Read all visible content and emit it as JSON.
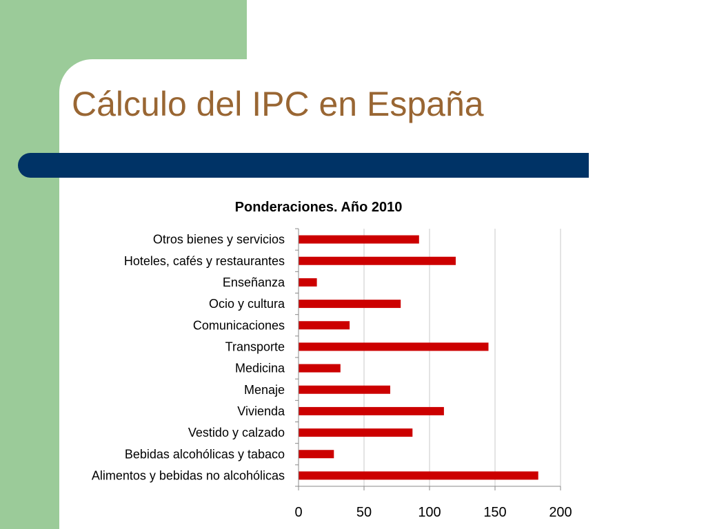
{
  "slide": {
    "title": "Cálculo del IPC en España",
    "colors": {
      "title": "#996633",
      "accent_bar": "#003366",
      "side_panel": "#9bcb99"
    }
  },
  "chart_data": {
    "type": "bar",
    "orientation": "horizontal",
    "title": "Ponderaciones. Año 2010",
    "xlabel": "",
    "ylabel": "",
    "xlim": [
      0,
      200
    ],
    "xticks": [
      0,
      50,
      100,
      150,
      200
    ],
    "grid": true,
    "bar_color": "#cc0000",
    "categories": [
      "Otros bienes y servicios",
      "Hoteles, cafés y restaurantes",
      "Enseñanza",
      "Ocio y cultura",
      "Comunicaciones",
      "Transporte",
      "Medicina",
      "Menaje",
      "Vivienda",
      "Vestido y calzado",
      "Bebidas alcohólicas y tabaco",
      "Alimentos y bebidas no alcohólicas"
    ],
    "values": [
      92,
      120,
      14,
      78,
      39,
      145,
      32,
      70,
      111,
      87,
      27,
      183
    ]
  }
}
